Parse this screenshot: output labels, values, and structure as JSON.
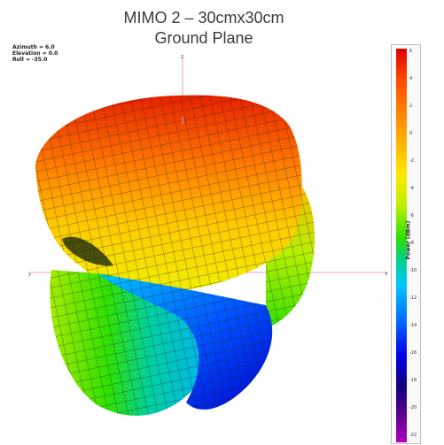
{
  "chart_data": {
    "type": "3d-radiation-pattern",
    "title": "MIMO 2 – 30cmx30cm",
    "subtitle": "Ground Plane",
    "view": {
      "azimuth": "Azimuth = 6.0",
      "elevation": "Elevation = 0.0",
      "roll": "Roll = -35.0"
    },
    "colorbar": {
      "label": "Power (dBm)",
      "ticks": [
        "6",
        "4",
        "2",
        "0",
        "-2",
        "-4",
        "-6",
        "-8",
        "-10",
        "-12",
        "-14",
        "-16",
        "-18",
        "-20",
        "-22"
      ],
      "colors": [
        "#e00000",
        "#ff9b00",
        "#ffe800",
        "#2ee000",
        "#00c8ff",
        "#0000e8",
        "#5a0090"
      ]
    },
    "axes": {
      "x_label": "x",
      "y_label": "y",
      "z_label": "z"
    }
  }
}
